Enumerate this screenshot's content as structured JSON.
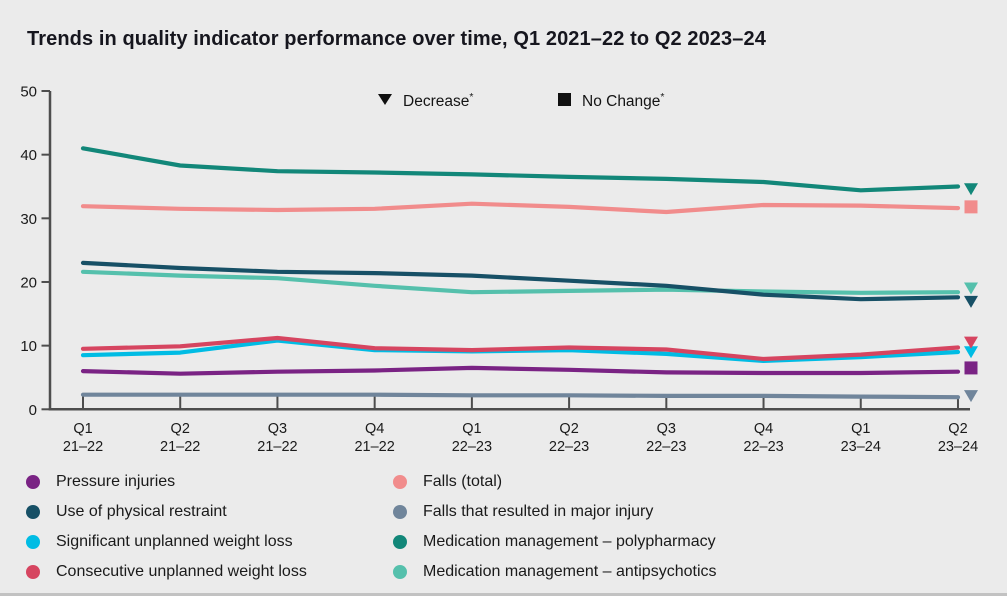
{
  "page": {
    "background_color": "#EBEBEB"
  },
  "chart_data": {
    "type": "line",
    "title": "Trends in quality indicator performance over time, Q1 2021–22 to Q2 2023–24",
    "xlabel": "",
    "ylabel": "",
    "ylim": [
      0,
      50
    ],
    "y_ticks": [
      0,
      10,
      20,
      30,
      40,
      50
    ],
    "grid": false,
    "legend_position": "bottom",
    "x_labels": [
      {
        "quarter": "Q1",
        "year": "21–22"
      },
      {
        "quarter": "Q2",
        "year": "21–22"
      },
      {
        "quarter": "Q3",
        "year": "21–22"
      },
      {
        "quarter": "Q4",
        "year": "21–22"
      },
      {
        "quarter": "Q1",
        "year": "22–23"
      },
      {
        "quarter": "Q2",
        "year": "22–23"
      },
      {
        "quarter": "Q3",
        "year": "22–23"
      },
      {
        "quarter": "Q4",
        "year": "22–23"
      },
      {
        "quarter": "Q1",
        "year": "23–24"
      },
      {
        "quarter": "Q2",
        "year": "23–24"
      }
    ],
    "series": [
      {
        "key": "pressure-injuries",
        "name": "Pressure injuries",
        "color": "#7A2384",
        "values": [
          6.0,
          5.6,
          5.9,
          6.1,
          6.5,
          6.2,
          5.8,
          5.7,
          5.7,
          5.9
        ],
        "end_marker": "square",
        "end_marker_value": 6.5
      },
      {
        "key": "use-of-physical-restraint",
        "name": "Use of physical restraint",
        "color": "#175066",
        "values": [
          23.0,
          22.2,
          21.6,
          21.4,
          21.0,
          20.2,
          19.4,
          18.0,
          17.3,
          17.6
        ],
        "end_marker": "triangle-down",
        "end_marker_value": 16.9
      },
      {
        "key": "significant-unplanned-weight-loss",
        "name": "Significant unplanned weight loss",
        "color": "#00BCE4",
        "values": [
          8.5,
          8.9,
          10.8,
          9.3,
          9.1,
          9.3,
          8.7,
          7.6,
          8.2,
          9.0
        ],
        "end_marker": "triangle-down",
        "end_marker_value": 9.0
      },
      {
        "key": "consecutive-unplanned-weight-loss",
        "name": "Consecutive unplanned weight loss",
        "color": "#D64560",
        "values": [
          9.5,
          9.9,
          11.2,
          9.6,
          9.3,
          9.7,
          9.4,
          7.9,
          8.6,
          9.7
        ],
        "end_marker": "triangle-down",
        "end_marker_value": 10.5
      },
      {
        "key": "falls-total",
        "name": "Falls (total)",
        "color": "#F18C8C",
        "values": [
          31.9,
          31.5,
          31.3,
          31.5,
          32.3,
          31.8,
          31.0,
          32.1,
          32.0,
          31.6
        ],
        "end_marker": "square",
        "end_marker_value": 31.8
      },
      {
        "key": "falls-major-injury",
        "name": "Falls that resulted in major injury",
        "color": "#70859B",
        "values": [
          2.3,
          2.3,
          2.3,
          2.3,
          2.2,
          2.2,
          2.1,
          2.1,
          2.0,
          1.9
        ],
        "end_marker": "triangle-down",
        "end_marker_value": 2.1
      },
      {
        "key": "medication-management-polypharmacy",
        "name": "Medication management – polypharmacy",
        "color": "#128779",
        "values": [
          41.0,
          38.3,
          37.4,
          37.2,
          36.9,
          36.5,
          36.2,
          35.7,
          34.4,
          35.0
        ],
        "end_marker": "triangle-down",
        "end_marker_value": 34.6
      },
      {
        "key": "medication-management-antipsychotics",
        "name": "Medication management – antipsychotics",
        "color": "#55C0AC",
        "values": [
          21.6,
          21.0,
          20.6,
          19.4,
          18.4,
          18.6,
          18.8,
          18.5,
          18.3,
          18.4
        ],
        "end_marker": "triangle-down",
        "end_marker_value": 19.0
      }
    ],
    "draw_order": [
      5,
      0,
      2,
      3,
      7,
      1,
      4,
      6
    ]
  },
  "annotation_legend": {
    "decrease": {
      "marker": "triangle-down",
      "label": "Decrease",
      "note_symbol": "*"
    },
    "no_change": {
      "marker": "square",
      "label": "No Change",
      "note_symbol": "*"
    }
  },
  "legend": {
    "column1": [
      0,
      1,
      2,
      3
    ],
    "column2": [
      4,
      5,
      6,
      7
    ]
  }
}
